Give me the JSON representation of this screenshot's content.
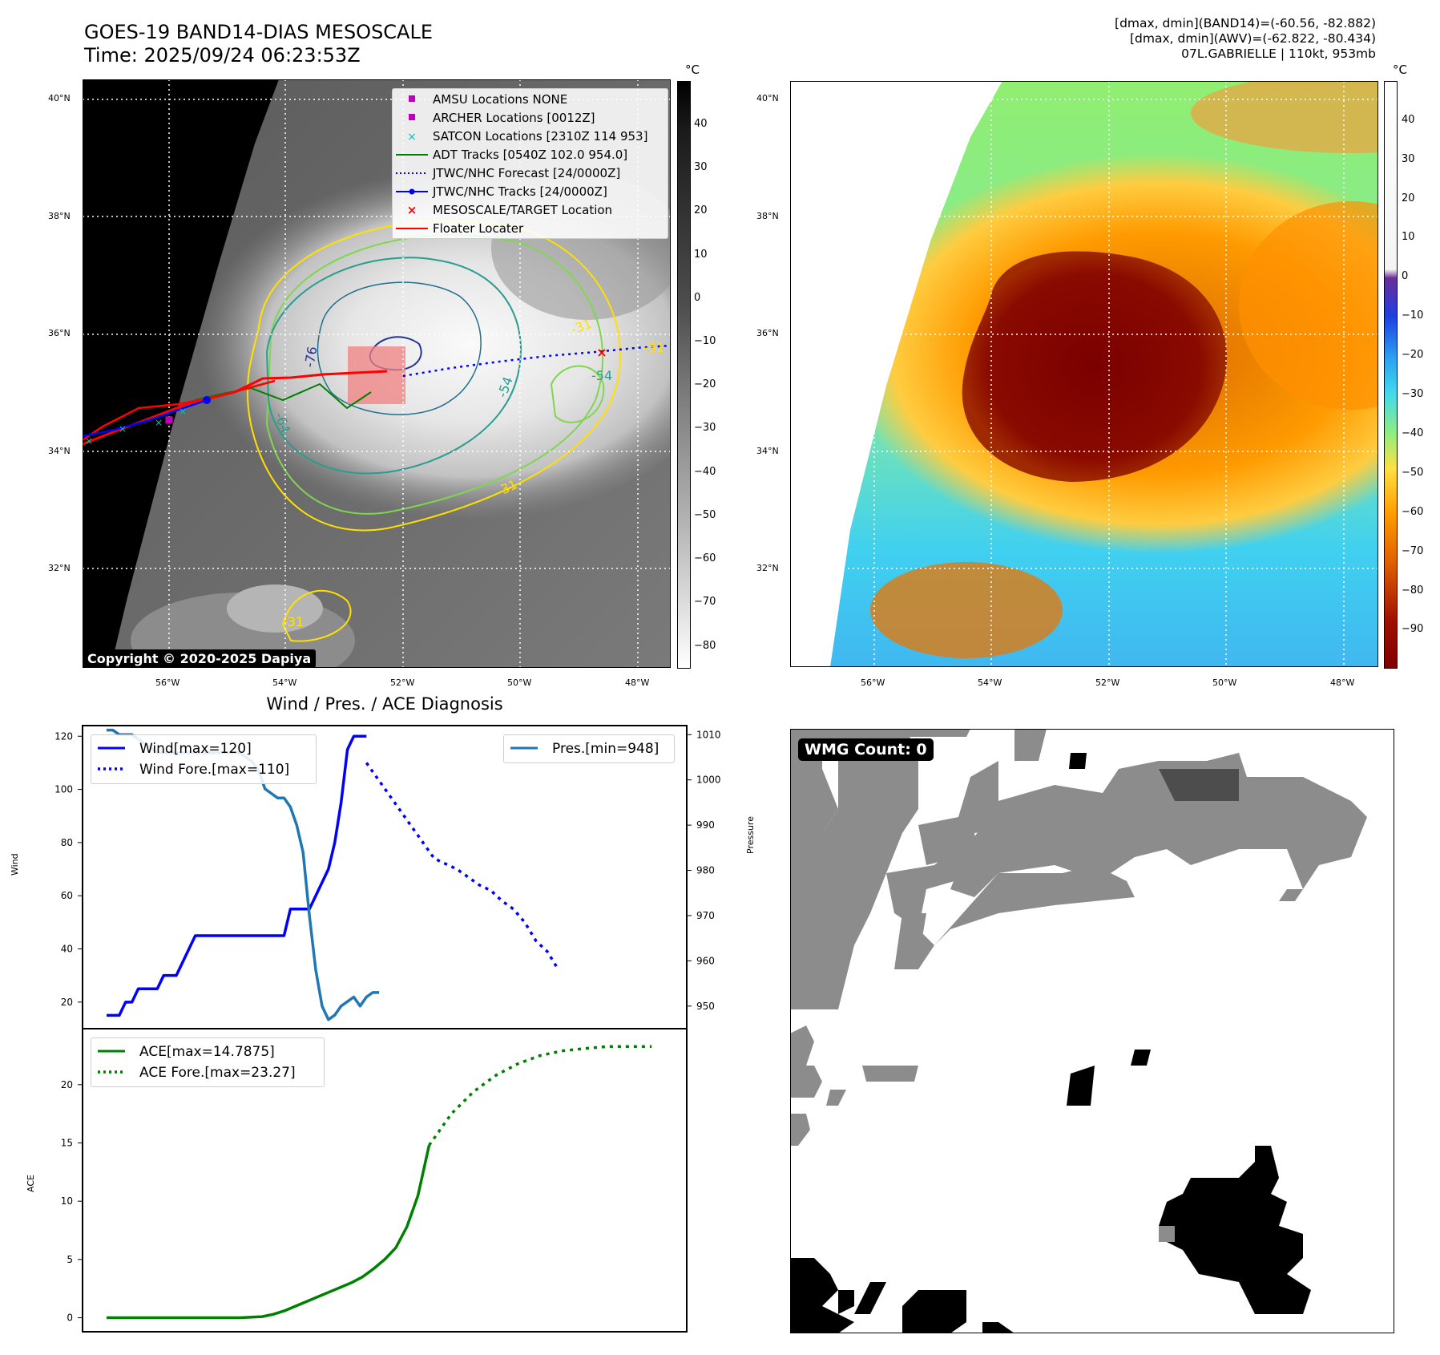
{
  "title": {
    "line1": "GOES-19 BAND14-DIAS MESOSCALE",
    "line2": "Time: 2025/09/24 06:23:53Z"
  },
  "stats": {
    "line1": "[dmax, dmin](BAND14)=(-60.56, -82.882)",
    "line2": "[dmax, dmin](AWV)=(-62.822, -80.434)",
    "line3": "07L.GABRIELLE | 110kt, 953mb"
  },
  "map": {
    "lat_labels": [
      "40°N",
      "38°N",
      "36°N",
      "34°N",
      "32°N"
    ],
    "lon_labels": [
      "56°W",
      "54°W",
      "52°W",
      "50°W",
      "48°W"
    ],
    "colors": {
      "adt": "#008000",
      "forecast": "#0000ff",
      "jtwc": "#0000ff",
      "floater": "#ff0000",
      "target": "#ff0000",
      "amsu": "#bf00bf",
      "archer": "#bf00bf",
      "satcon": "#00bfbf",
      "box": "#f28080"
    },
    "contour_labels": [
      "-76",
      "-64",
      "-54",
      "-31",
      "-31",
      "-31",
      "-54",
      "-31"
    ]
  },
  "legend": {
    "items": [
      {
        "label": "AMSU Locations NONE",
        "icon": "magenta-square"
      },
      {
        "label": "ARCHER Locations [0012Z]",
        "icon": "magenta-square"
      },
      {
        "label": "SATCON Locations [2310Z 114 953]",
        "icon": "cyan-x"
      },
      {
        "label": "ADT Tracks [0540Z 102.0 954.0]",
        "icon": "green-line"
      },
      {
        "label": "JTWC/NHC Forecast [24/0000Z]",
        "icon": "blue-dotted-line"
      },
      {
        "label": "JTWC/NHC Tracks [24/0000Z]",
        "icon": "blue-line-dot"
      },
      {
        "label": "MESOSCALE/TARGET Location",
        "icon": "red-x"
      },
      {
        "label": "Floater Locater",
        "icon": "red-line"
      }
    ]
  },
  "colorbar_left": {
    "unit": "°C",
    "ticks": [
      "40",
      "30",
      "20",
      "10",
      "0",
      "−10",
      "−20",
      "−30",
      "−40",
      "−50",
      "−60",
      "−70",
      "−80"
    ]
  },
  "colorbar_right": {
    "unit": "°C",
    "ticks": [
      "40",
      "30",
      "20",
      "10",
      "0",
      "−10",
      "−20",
      "−30",
      "−40",
      "−50",
      "−60",
      "−70",
      "−80",
      "−90"
    ]
  },
  "copyright": "Copyright © 2020-2025 Dapiya",
  "wmg": {
    "label": "WMG Count: 0"
  },
  "chart_data": [
    {
      "type": "line",
      "title": "Wind / Pres. / ACE Diagnosis",
      "ylabel": "Wind",
      "ylabel2": "Pressure",
      "ylim": [
        10,
        124
      ],
      "y2lim": [
        945,
        1012
      ],
      "yticks": [
        "20",
        "40",
        "60",
        "80",
        "100",
        "120"
      ],
      "y2ticks": [
        "950",
        "960",
        "970",
        "980",
        "990",
        "1000",
        "1010"
      ],
      "legend_wind": [
        "Wind[max=120]",
        "Wind Fore.[max=110]"
      ],
      "legend_pres": [
        "Pres.[min=948]"
      ],
      "series": [
        {
          "name": "Wind[max=120]",
          "style": "solid",
          "color": "#0000ff",
          "x": [
            0,
            1,
            2,
            3,
            4,
            5,
            6,
            7,
            8,
            9,
            10,
            11,
            12,
            13,
            14,
            15,
            16,
            17,
            18,
            19,
            20,
            21,
            22,
            23,
            24,
            25,
            26,
            27,
            28,
            29,
            30,
            31,
            32,
            33,
            34,
            35,
            36,
            37,
            38,
            39,
            40,
            41
          ],
          "y": [
            15,
            15,
            15,
            20,
            20,
            25,
            25,
            25,
            25,
            30,
            30,
            30,
            35,
            40,
            45,
            45,
            45,
            45,
            45,
            45,
            45,
            45,
            45,
            45,
            45,
            45,
            45,
            45,
            45,
            55,
            55,
            55,
            55,
            60,
            65,
            70,
            80,
            95,
            115,
            120,
            120,
            120
          ]
        },
        {
          "name": "Wind Fore.[max=110]",
          "style": "dotted",
          "color": "#0000ff",
          "x": [
            41,
            43,
            45,
            47,
            49,
            51,
            52,
            53,
            54,
            55,
            56,
            57,
            58
          ],
          "y": [
            110,
            98,
            86,
            74,
            70,
            64,
            62,
            58,
            55,
            50,
            43,
            39,
            32
          ]
        },
        {
          "name": "Pres.[min=948]",
          "style": "solid",
          "color": "#1f77b4",
          "axis": "right",
          "x": [
            0,
            1,
            2,
            3,
            4,
            5,
            6,
            7,
            8,
            9,
            10,
            11,
            12,
            13,
            14,
            15,
            16,
            17,
            18,
            19,
            20,
            21,
            22,
            23,
            24,
            25,
            26,
            27,
            28,
            29,
            30,
            31,
            32,
            33,
            34,
            35,
            36,
            37,
            38,
            39,
            40,
            41,
            42,
            43
          ],
          "y": [
            1011,
            1011,
            1010,
            1010,
            1010,
            1009,
            1008,
            1007,
            1006,
            1006,
            1006,
            1006,
            1006,
            1006,
            1006,
            1006,
            1006,
            1006,
            1006,
            1006,
            1006,
            1006,
            1005,
            1004,
            1002,
            998,
            997,
            996,
            996,
            994,
            990,
            984,
            970,
            958,
            950,
            947,
            948,
            950,
            951,
            952,
            950,
            952,
            953,
            953
          ]
        }
      ]
    },
    {
      "type": "line",
      "ylabel": "ACE",
      "ylim": [
        -1.2,
        24.8
      ],
      "yticks": [
        "0",
        "5",
        "10",
        "15",
        "20"
      ],
      "legend": [
        "ACE[max=14.7875]",
        "ACE Fore.[max=23.27]"
      ],
      "series": [
        {
          "name": "ACE[max=14.7875]",
          "style": "solid",
          "color": "#008000",
          "x": [
            0,
            4,
            8,
            12,
            16,
            20,
            24,
            28,
            30,
            32,
            34,
            36,
            38,
            40,
            42,
            44,
            46,
            48,
            50,
            52,
            54,
            56,
            58
          ],
          "y": [
            0,
            0,
            0,
            0,
            0,
            0,
            0,
            0.1,
            0.3,
            0.6,
            1.0,
            1.4,
            1.8,
            2.2,
            2.6,
            3.0,
            3.5,
            4.2,
            5.0,
            6.0,
            7.8,
            10.5,
            14.8
          ]
        },
        {
          "name": "ACE Fore.[max=23.27]",
          "style": "dotted",
          "color": "#008000",
          "x": [
            58,
            62,
            66,
            70,
            74,
            78,
            82,
            86,
            90,
            94,
            98
          ],
          "y": [
            14.8,
            17.5,
            19.4,
            20.8,
            21.8,
            22.5,
            22.9,
            23.1,
            23.27,
            23.27,
            23.27
          ]
        }
      ]
    }
  ]
}
